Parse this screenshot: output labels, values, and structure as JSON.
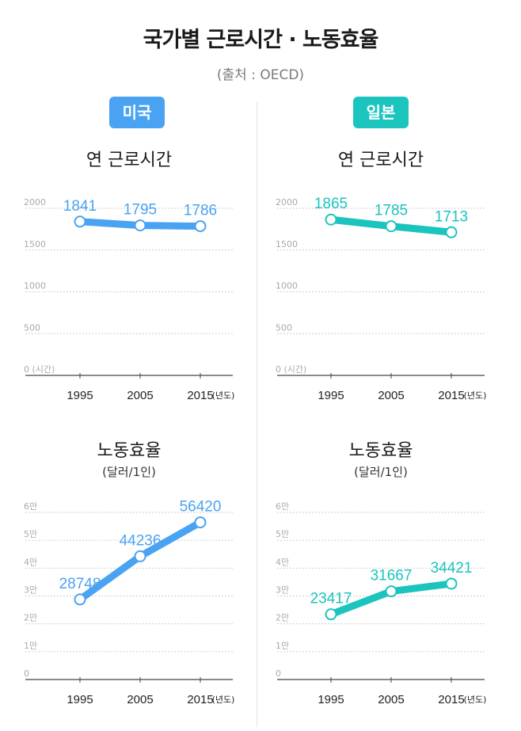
{
  "title": "국가별 근로시간 · 노동효율",
  "source": "(출처 : OECD)",
  "colors": {
    "us": "#4aa3f2",
    "jp": "#1bc4bd",
    "grid": "#cfcfcf",
    "axis": "#444444",
    "tick": "#aaaaaa"
  },
  "countries": {
    "us": "미국",
    "jp": "일본"
  },
  "chart_data": [
    {
      "id": "us-hours",
      "country": "미국",
      "type": "line",
      "title": "연 근로시간",
      "subtitle": "",
      "x": [
        "1995",
        "2005",
        "2015"
      ],
      "values": [
        1841,
        1795,
        1786
      ],
      "yticks": [
        {
          "v": 0,
          "label": "0 (시간)"
        },
        {
          "v": 500,
          "label": "500"
        },
        {
          "v": 1000,
          "label": "1000"
        },
        {
          "v": 1500,
          "label": "1500"
        },
        {
          "v": 2000,
          "label": "2000"
        }
      ],
      "ylim": [
        0,
        2000
      ],
      "xunit": "(년도)",
      "color": "#4aa3f2"
    },
    {
      "id": "jp-hours",
      "country": "일본",
      "type": "line",
      "title": "연 근로시간",
      "subtitle": "",
      "x": [
        "1995",
        "2005",
        "2015"
      ],
      "values": [
        1865,
        1785,
        1713
      ],
      "yticks": [
        {
          "v": 0,
          "label": "0 (시간)"
        },
        {
          "v": 500,
          "label": "500"
        },
        {
          "v": 1000,
          "label": "1000"
        },
        {
          "v": 1500,
          "label": "1500"
        },
        {
          "v": 2000,
          "label": "2000"
        }
      ],
      "ylim": [
        0,
        2000
      ],
      "xunit": "(년도)",
      "color": "#1bc4bd"
    },
    {
      "id": "us-prod",
      "country": "미국",
      "type": "line",
      "title": "노동효율",
      "subtitle": "(달러/1인)",
      "x": [
        "1995",
        "2005",
        "2015"
      ],
      "values": [
        28748,
        44236,
        56420
      ],
      "yticks": [
        {
          "v": 0,
          "label": "0"
        },
        {
          "v": 10000,
          "label": "1만"
        },
        {
          "v": 20000,
          "label": "2만"
        },
        {
          "v": 30000,
          "label": "3만"
        },
        {
          "v": 40000,
          "label": "4만"
        },
        {
          "v": 50000,
          "label": "5만"
        },
        {
          "v": 60000,
          "label": "6만"
        }
      ],
      "ylim": [
        0,
        60000
      ],
      "xunit": "(년도)",
      "color": "#4aa3f2"
    },
    {
      "id": "jp-prod",
      "country": "일본",
      "type": "line",
      "title": "노동효율",
      "subtitle": "(달러/1인)",
      "x": [
        "1995",
        "2005",
        "2015"
      ],
      "values": [
        23417,
        31667,
        34421
      ],
      "yticks": [
        {
          "v": 0,
          "label": "0"
        },
        {
          "v": 10000,
          "label": "1만"
        },
        {
          "v": 20000,
          "label": "2만"
        },
        {
          "v": 30000,
          "label": "3만"
        },
        {
          "v": 40000,
          "label": "4만"
        },
        {
          "v": 50000,
          "label": "5만"
        },
        {
          "v": 60000,
          "label": "6만"
        }
      ],
      "ylim": [
        0,
        60000
      ],
      "xunit": "(년도)",
      "color": "#1bc4bd"
    }
  ]
}
